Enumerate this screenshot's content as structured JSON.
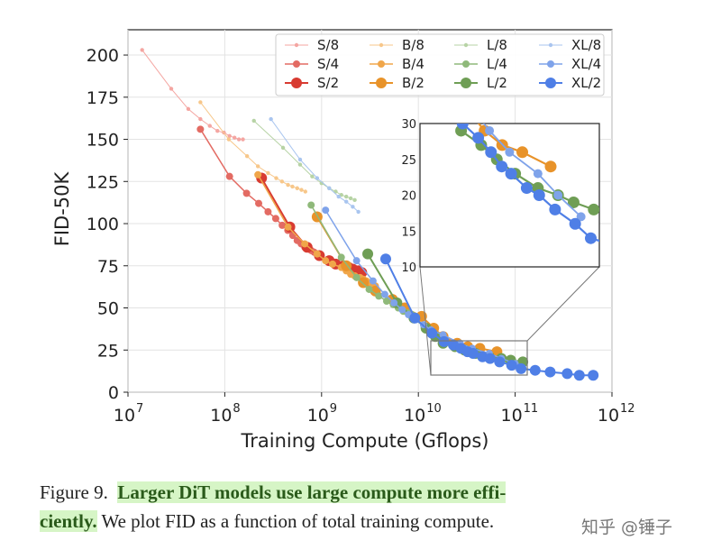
{
  "chart_data": {
    "type": "line",
    "title": "",
    "xlabel": "Training Compute (Gflops)",
    "ylabel": "FID-50K",
    "xscale": "log",
    "xlim": [
      10000000,
      1000000000000
    ],
    "ylim": [
      0,
      215
    ],
    "xticks": [
      {
        "value": 10000000,
        "base": "10",
        "exp": "7"
      },
      {
        "value": 100000000,
        "base": "10",
        "exp": "8"
      },
      {
        "value": 1000000000,
        "base": "10",
        "exp": "9"
      },
      {
        "value": 10000000000,
        "base": "10",
        "exp": "10"
      },
      {
        "value": 100000000000,
        "base": "10",
        "exp": "11"
      },
      {
        "value": 1000000000000,
        "base": "10",
        "exp": "12"
      }
    ],
    "yticks": [
      "0",
      "25",
      "50",
      "75",
      "100",
      "125",
      "150",
      "175",
      "200"
    ],
    "legend_position": "top-right",
    "series": [
      {
        "name": "S/8",
        "color": "#f4a6a2",
        "size": 1,
        "x": [
          14000000,
          28000000,
          42000000,
          56000000,
          70000000,
          84000000,
          98000000,
          112000000,
          126000000,
          140000000,
          154000000
        ],
        "y": [
          203,
          180,
          168,
          162,
          158,
          155,
          154,
          152,
          151,
          150,
          150
        ]
      },
      {
        "name": "S/4",
        "color": "#e36b63",
        "size": 2,
        "x": [
          56000000,
          112000000,
          168000000,
          224000000,
          280000000,
          336000000,
          392000000,
          448000000,
          504000000,
          560000000,
          616000000,
          672000000,
          728000000,
          784000000,
          840000000,
          896000000,
          952000000
        ],
        "y": [
          156,
          128,
          118,
          112,
          107,
          103,
          99,
          96,
          93,
          90,
          88,
          86,
          85,
          84,
          83,
          82,
          81
        ]
      },
      {
        "name": "S/2",
        "color": "#d83b31",
        "size": 3,
        "x": [
          240000000,
          470000000,
          710000000,
          950000000,
          1200000000,
          1400000000,
          1700000000,
          1900000000,
          2100000000,
          2400000000,
          2600000000
        ],
        "y": [
          127,
          98,
          86,
          81,
          78,
          76,
          75,
          74,
          73,
          72,
          71
        ]
      },
      {
        "name": "B/8",
        "color": "#f7c78a",
        "size": 1,
        "x": [
          56000000,
          110000000,
          170000000,
          220000000,
          280000000,
          340000000,
          390000000,
          450000000,
          500000000,
          560000000,
          620000000,
          680000000
        ],
        "y": [
          172,
          150,
          140,
          134,
          130,
          127,
          125,
          123,
          122,
          121,
          120,
          119
        ]
      },
      {
        "name": "B/4",
        "color": "#f0a64a",
        "size": 2,
        "x": [
          220000000,
          450000000,
          670000000,
          900000000,
          1100000000,
          1300000000,
          1600000000,
          1800000000,
          2000000000,
          2200000000,
          2500000000,
          2700000000,
          2900000000,
          3100000000,
          3400000000,
          3600000000
        ],
        "y": [
          129,
          98,
          88,
          82,
          78,
          76,
          74,
          72,
          70,
          69,
          68,
          67,
          66,
          65,
          64,
          63
        ]
      },
      {
        "name": "B/2",
        "color": "#e8932a",
        "size": 3,
        "x": [
          900000000,
          1800000000,
          2700000000,
          3600000000,
          5400000000,
          7200000000,
          10800000000,
          14400000000,
          18000000000,
          25200000000,
          32400000000,
          43200000000,
          64800000000
        ],
        "y": [
          104,
          75,
          65,
          60,
          55,
          50,
          45,
          38,
          33,
          29,
          27,
          26,
          24
        ]
      },
      {
        "name": "L/8",
        "color": "#b7d3a5",
        "size": 1,
        "x": [
          200000000,
          400000000,
          600000000,
          800000000,
          1000000000,
          1200000000,
          1400000000,
          1600000000,
          1800000000,
          2000000000,
          2200000000
        ],
        "y": [
          161,
          145,
          135,
          128,
          124,
          121,
          119,
          117,
          116,
          115,
          114
        ]
      },
      {
        "name": "L/4",
        "color": "#8fb97a",
        "size": 2,
        "x": [
          780000000,
          1600000000,
          2300000000,
          3100000000,
          3900000000,
          4700000000,
          5500000000,
          6200000000,
          7000000000,
          7800000000,
          8600000000,
          9400000000
        ],
        "y": [
          111,
          80,
          68,
          61,
          57,
          54,
          52,
          50,
          48,
          47,
          46,
          45
        ]
      },
      {
        "name": "L/2",
        "color": "#6f9e55",
        "size": 3,
        "x": [
          3000000000,
          6000000000,
          9000000000,
          12000000000,
          15000000000,
          18000000000,
          24000000000,
          30000000000,
          39000000000,
          54000000000,
          72000000000,
          90000000000,
          120000000000
        ],
        "y": [
          82,
          53,
          44,
          38,
          33,
          29,
          27,
          25,
          23,
          21,
          20,
          19,
          18
        ]
      },
      {
        "name": "XL/8",
        "color": "#a9c5ef",
        "size": 1,
        "x": [
          300000000,
          600000000,
          900000000,
          1200000000,
          1500000000,
          1800000000,
          2100000000,
          2400000000
        ],
        "y": [
          162,
          138,
          127,
          121,
          116,
          113,
          110,
          107
        ]
      },
      {
        "name": "XL/4",
        "color": "#7fa3ea",
        "size": 2,
        "x": [
          1100000000,
          2300000000,
          3400000000,
          4500000000,
          5600000000,
          6800000000,
          7900000000,
          9000000000,
          11300000000,
          13500000000,
          18000000000,
          27000000000,
          36000000000,
          54000000000,
          72000000000,
          100000000000
        ],
        "y": [
          108,
          78,
          66,
          58,
          53,
          49,
          46,
          43,
          40,
          37,
          34,
          29,
          26,
          23,
          20,
          17
        ]
      },
      {
        "name": "XL/2",
        "color": "#4f7fe6",
        "size": 3,
        "x": [
          4600000000,
          9200000000,
          13800000000,
          18400000000,
          23000000000,
          27600000000,
          32200000000,
          36800000000,
          46000000000,
          55000000000,
          69000000000,
          92000000000,
          115000000000,
          161000000000,
          230000000000,
          345000000000,
          460000000000,
          640000000000
        ],
        "y": [
          79,
          44,
          35,
          30,
          28,
          26,
          24,
          23,
          21,
          20,
          18,
          16,
          14,
          13,
          12,
          11,
          10,
          10
        ]
      }
    ],
    "inset": {
      "xlim": [
        10000000000,
        130000000000
      ],
      "ylim": [
        10,
        30
      ],
      "yticks": [
        "10",
        "15",
        "20",
        "25",
        "30"
      ]
    }
  },
  "caption": {
    "prefix": "Figure 9.",
    "highlight_1": "Larger DiT models use large compute more effi-",
    "highlight_2": "ciently.",
    "rest": " We plot FID as a function of total training compute."
  },
  "watermark": "知乎 @锤子"
}
